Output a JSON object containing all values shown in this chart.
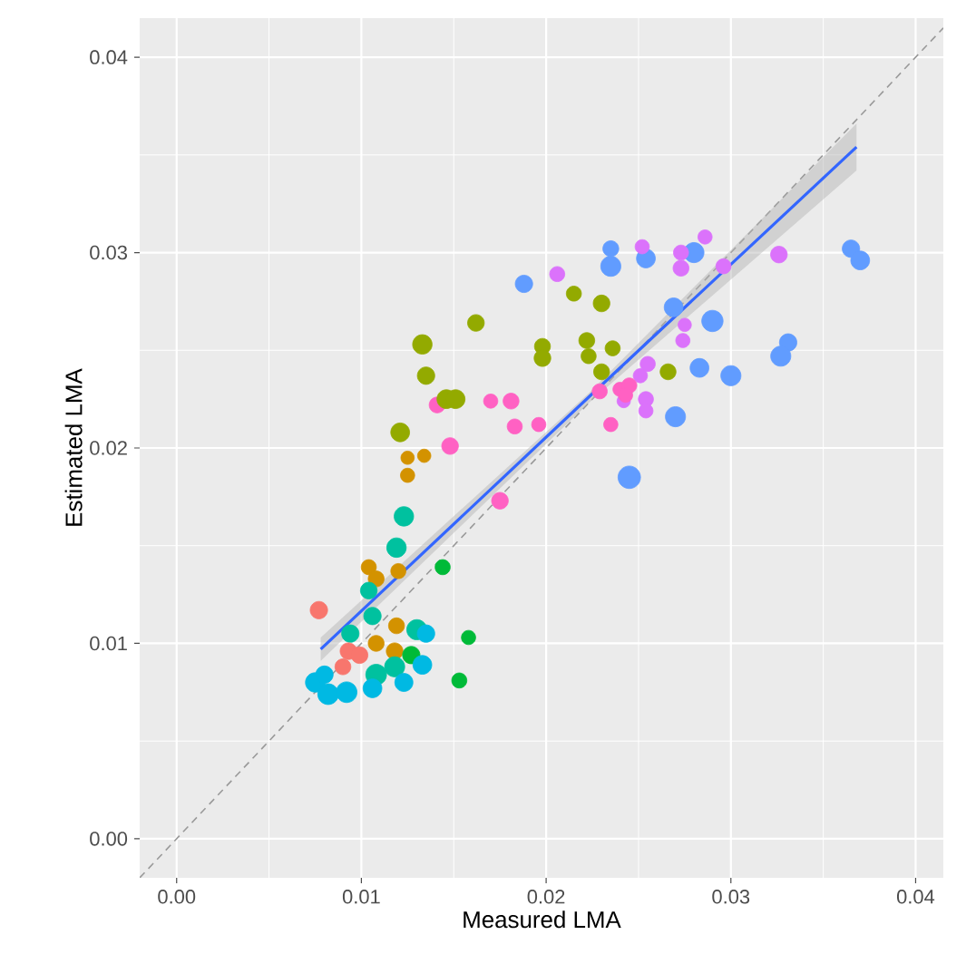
{
  "chart_data": {
    "type": "bubble",
    "xlabel": "Measured LMA",
    "ylabel": "Estimated LMA",
    "grid": true,
    "xlim": [
      -0.002,
      0.0415
    ],
    "ylim": [
      -0.002,
      0.042
    ],
    "xticks": [
      {
        "value": 0,
        "label": "0.00"
      },
      {
        "value": 0.01,
        "label": "0.01"
      },
      {
        "value": 0.02,
        "label": "0.02"
      },
      {
        "value": 0.03,
        "label": "0.03"
      },
      {
        "value": 0.04,
        "label": "0.04"
      }
    ],
    "yticks": [
      {
        "value": 0,
        "label": "0.00"
      },
      {
        "value": 0.01,
        "label": "0.01"
      },
      {
        "value": 0.02,
        "label": "0.02"
      },
      {
        "value": 0.03,
        "label": "0.03"
      },
      {
        "value": 0.04,
        "label": "0.04"
      }
    ],
    "series": [
      {
        "color": "#619CFF",
        "x": [
          0.0188,
          0.0235,
          0.0235,
          0.0254,
          0.028,
          0.0365,
          0.037,
          0.0269,
          0.029,
          0.0331,
          0.0327,
          0.0283,
          0.03,
          0.027,
          0.0245
        ],
        "values": [
          0.0284,
          0.0302,
          0.0293,
          0.0297,
          0.03,
          0.0302,
          0.0296,
          0.0272,
          0.0265,
          0.0254,
          0.0247,
          0.0241,
          0.0237,
          0.0216,
          0.0185
        ],
        "sizes": [
          0.6,
          0.5,
          0.8,
          0.7,
          0.8,
          0.6,
          0.7,
          0.7,
          0.9,
          0.6,
          0.8,
          0.7,
          0.8,
          0.8,
          1
        ]
      },
      {
        "color": "#DB72FB",
        "x": [
          0.0206,
          0.0252,
          0.0286,
          0.0273,
          0.0273,
          0.0326,
          0.0296,
          0.0275,
          0.0274,
          0.0255,
          0.0251,
          0.0254,
          0.0242,
          0.0254
        ],
        "values": [
          0.0289,
          0.0303,
          0.0308,
          0.0292,
          0.03,
          0.0299,
          0.0293,
          0.0263,
          0.0255,
          0.0243,
          0.0237,
          0.0225,
          0.0224,
          0.0219
        ],
        "sizes": [
          0.45,
          0.4,
          0.4,
          0.5,
          0.45,
          0.55,
          0.45,
          0.35,
          0.4,
          0.45,
          0.4,
          0.45,
          0.35,
          0.4
        ]
      },
      {
        "color": "#FF61C3",
        "x": [
          0.0141,
          0.0148,
          0.017,
          0.0181,
          0.0183,
          0.0196,
          0.0175,
          0.0235,
          0.0229,
          0.024,
          0.0245,
          0.0243
        ],
        "values": [
          0.0222,
          0.0201,
          0.0224,
          0.0224,
          0.0211,
          0.0212,
          0.0173,
          0.0212,
          0.0229,
          0.023,
          0.0232,
          0.0227
        ],
        "sizes": [
          0.5,
          0.55,
          0.4,
          0.5,
          0.45,
          0.4,
          0.55,
          0.4,
          0.45,
          0.4,
          0.45,
          0.4
        ]
      },
      {
        "color": "#93AA00",
        "x": [
          0.0133,
          0.0135,
          0.0162,
          0.0146,
          0.0151,
          0.0121,
          0.0198,
          0.0198,
          0.0215,
          0.023,
          0.0222,
          0.0223,
          0.023,
          0.0236,
          0.0266
        ],
        "values": [
          0.0253,
          0.0237,
          0.0264,
          0.0225,
          0.0225,
          0.0208,
          0.0252,
          0.0246,
          0.0279,
          0.0274,
          0.0255,
          0.0247,
          0.0239,
          0.0251,
          0.0239
        ],
        "sizes": [
          0.75,
          0.6,
          0.55,
          0.7,
          0.7,
          0.7,
          0.5,
          0.55,
          0.45,
          0.55,
          0.5,
          0.45,
          0.5,
          0.45,
          0.5
        ]
      },
      {
        "color": "#D39200",
        "x": [
          0.0125,
          0.0134,
          0.0125,
          0.0104,
          0.0108,
          0.012,
          0.0119,
          0.0118,
          0.0108
        ],
        "values": [
          0.0195,
          0.0196,
          0.0186,
          0.0139,
          0.0133,
          0.0137,
          0.0109,
          0.0096,
          0.01
        ],
        "sizes": [
          0.35,
          0.35,
          0.4,
          0.45,
          0.5,
          0.45,
          0.5,
          0.55,
          0.5
        ]
      },
      {
        "color": "#00C19F",
        "x": [
          0.0123,
          0.0119,
          0.013,
          0.0106,
          0.0094,
          0.0108,
          0.0118,
          0.0104
        ],
        "values": [
          0.0165,
          0.0149,
          0.0107,
          0.0114,
          0.0105,
          0.0084,
          0.0088,
          0.0127
        ],
        "sizes": [
          0.75,
          0.75,
          0.8,
          0.6,
          0.6,
          0.85,
          0.8,
          0.55
        ]
      },
      {
        "color": "#00BA38",
        "x": [
          0.0144,
          0.0158,
          0.0153,
          0.0127
        ],
        "values": [
          0.0139,
          0.0103,
          0.0081,
          0.0094
        ],
        "sizes": [
          0.45,
          0.4,
          0.45,
          0.6
        ]
      },
      {
        "color": "#00B9E3",
        "x": [
          0.0075,
          0.0082,
          0.0092,
          0.0106,
          0.0123,
          0.0133,
          0.0135,
          0.008
        ],
        "values": [
          0.008,
          0.0074,
          0.0075,
          0.0077,
          0.008,
          0.0089,
          0.0105,
          0.0084
        ],
        "sizes": [
          0.75,
          0.85,
          0.85,
          0.7,
          0.65,
          0.7,
          0.6,
          0.6
        ]
      },
      {
        "color": "#F8766D",
        "x": [
          0.0077,
          0.0093,
          0.0099,
          0.009
        ],
        "values": [
          0.0117,
          0.0096,
          0.0094,
          0.0088
        ],
        "sizes": [
          0.6,
          0.55,
          0.55,
          0.5
        ]
      },
      {
        "type": "line",
        "marker": "none",
        "color": "#999999",
        "line_style": "dashed",
        "x": [
          -0.002,
          0.0415
        ],
        "values": [
          -0.002,
          0.0415
        ]
      },
      {
        "type": "line",
        "marker": "none",
        "color": "#3366FF",
        "line_style": "solid",
        "x": [
          0.0078,
          0.0223,
          0.0368
        ],
        "values": [
          0.0097,
          0.0226,
          0.0354
        ],
        "lower": [
          0.0091,
          0.0223,
          0.0342
        ],
        "upper": [
          0.0103,
          0.0228,
          0.0366
        ]
      }
    ]
  }
}
